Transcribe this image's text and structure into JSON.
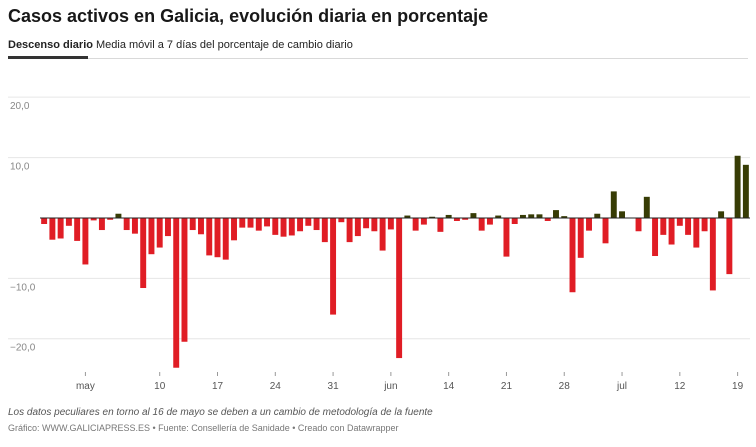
{
  "title": "Casos activos en Galicia, evolución diaria en porcentaje",
  "tabs": [
    {
      "label": "Descenso diario",
      "active": true
    },
    {
      "label": "Media móvil a 7 días del porcentaje de cambio diario",
      "active": false
    }
  ],
  "note": "Los datos peculiares en torno al 16 de mayo se deben a un cambio de metodología de la fuente",
  "source": "Gráfico: WWW.GALICIAPRESS.ES • Fuente: Consellería de Sanidade • Creado con Datawrapper",
  "colors": {
    "negative": "#e01d25",
    "positive": "#373c05",
    "grid": "#e6e6e6",
    "zero_line": "#222222"
  },
  "chart_data": {
    "type": "bar",
    "y_tick_labels": [
      "20,0",
      "10,0",
      "",
      "−10,0",
      "−20,0"
    ],
    "y_ticks": [
      20,
      10,
      0,
      -10,
      -20
    ],
    "ylim": [
      -26.5,
      24.5
    ],
    "grid": true,
    "x_tick_labels": [
      "may",
      "10",
      "17",
      "24",
      "31",
      "jun",
      "14",
      "21",
      "28",
      "jul",
      "12",
      "19"
    ],
    "x_tick_index": [
      5,
      14,
      21,
      28,
      35,
      42,
      49,
      56,
      63,
      70,
      77,
      84
    ],
    "values": [
      -1.0,
      -3.6,
      -3.4,
      -1.3,
      -3.8,
      -7.7,
      -0.4,
      -2.0,
      -0.3,
      0.7,
      -2.0,
      -2.6,
      -11.6,
      -6.0,
      -4.9,
      -3.0,
      -24.8,
      -20.5,
      -2.0,
      -2.7,
      -6.2,
      -6.5,
      -6.9,
      -3.7,
      -1.6,
      -1.6,
      -2.1,
      -1.4,
      -2.8,
      -3.1,
      -2.9,
      -2.2,
      -1.3,
      -2.0,
      -4.0,
      -16.0,
      -0.7,
      -4.0,
      -3.0,
      -1.7,
      -2.2,
      -5.4,
      -1.9,
      -23.2,
      0.4,
      -2.1,
      -1.1,
      0.2,
      -2.3,
      0.5,
      -0.5,
      -0.3,
      0.8,
      -2.1,
      -1.1,
      0.4,
      -6.4,
      -1.0,
      0.5,
      0.6,
      0.6,
      -0.5,
      1.3,
      0.3,
      -12.3,
      -6.6,
      -2.1,
      0.7,
      -4.2,
      4.4,
      1.1,
      0.0,
      -2.2,
      3.5,
      -6.3,
      -2.8,
      -4.4,
      -1.3,
      -2.8,
      -4.9,
      -2.2,
      -12.0,
      1.1,
      -9.3,
      10.3,
      8.8
    ]
  }
}
